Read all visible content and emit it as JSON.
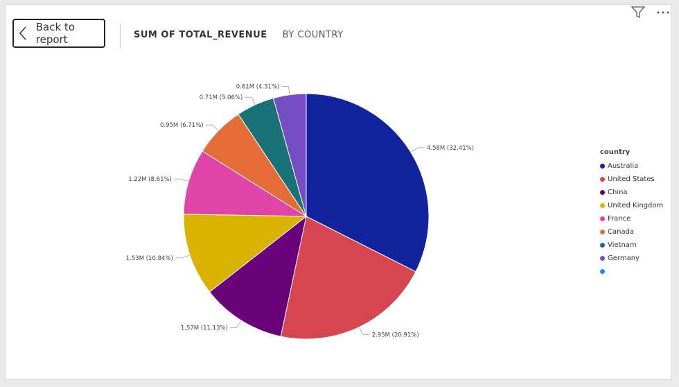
{
  "header": {
    "back_label": "Back to report",
    "title_metric": "SUM OF TOTAL_REVENUE",
    "title_by": "BY COUNTRY"
  },
  "toolbar": {
    "icons": [
      "filter-icon",
      "more-options-icon"
    ]
  },
  "legend": {
    "title": "country"
  },
  "chart_data": {
    "type": "pie",
    "title": "SUM OF TOTAL_REVENUE BY COUNTRY",
    "slices": [
      {
        "category": "Australia",
        "value": 4.58,
        "percent": 32.41,
        "label": "4.58M (32.41%)",
        "color": "#12239E"
      },
      {
        "category": "United States",
        "value": 2.95,
        "percent": 20.91,
        "label": "2.95M (20.91%)",
        "color": "#D64550"
      },
      {
        "category": "China",
        "value": 1.57,
        "percent": 11.13,
        "label": "1.57M (11.13%)",
        "color": "#6B007B"
      },
      {
        "category": "United Kingdom",
        "value": 1.53,
        "percent": 10.84,
        "label": "1.53M (10.84%)",
        "color": "#D9B300"
      },
      {
        "category": "France",
        "value": 1.22,
        "percent": 8.61,
        "label": "1.22M (8.61%)",
        "color": "#E044A7"
      },
      {
        "category": "Canada",
        "value": 0.95,
        "percent": 6.71,
        "label": "0.95M (6.71%)",
        "color": "#E66C37"
      },
      {
        "category": "Vietnam",
        "value": 0.71,
        "percent": 5.06,
        "label": "0.71M (5.06%)",
        "color": "#197278"
      },
      {
        "category": "Germany",
        "value": 0.61,
        "percent": 4.31,
        "label": "0.61M (4.31%)",
        "color": "#744EC2"
      },
      {
        "category": "",
        "value": 0.0,
        "percent": 0.0,
        "label": "",
        "color": "#118DFF"
      }
    ],
    "legend_position": "right"
  }
}
